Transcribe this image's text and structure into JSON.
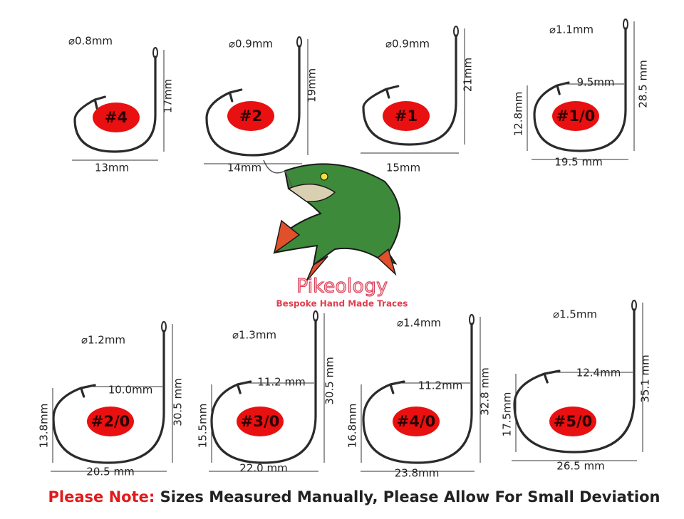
{
  "hooks": [
    {
      "size": "#4",
      "diameter": "⌀0.8mm",
      "length": "17mm",
      "width": "13mm"
    },
    {
      "size": "#2",
      "diameter": "⌀0.9mm",
      "length": "19mm",
      "width": "14mm"
    },
    {
      "size": "#1",
      "diameter": "⌀0.9mm",
      "length": "21mm",
      "width": "15mm"
    },
    {
      "size": "#1/0",
      "diameter": "⌀1.1mm",
      "gap": "9.5mm",
      "length": "28.5 mm",
      "point_height": "12.8mm",
      "width": "19.5 mm"
    },
    {
      "size": "#2/0",
      "diameter": "⌀1.2mm",
      "gap": "10.0mm",
      "length": "30.5 mm",
      "point_height": "13.8mm",
      "width": "20.5 mm"
    },
    {
      "size": "#3/0",
      "diameter": "⌀1.3mm",
      "gap": "11.2 mm",
      "length": "30.5 mm",
      "point_height": "15.5mm",
      "width": "22.0 mm"
    },
    {
      "size": "#4/0",
      "diameter": "⌀1.4mm",
      "gap": "11.2mm",
      "length": "32.8 mm",
      "point_height": "16.8mm",
      "width": "23.8mm"
    },
    {
      "size": "#5/0",
      "diameter": "⌀1.5mm",
      "gap": "12.4mm",
      "length": "35.1 mm",
      "point_height": "17.5mm",
      "width": "26.5 mm"
    }
  ],
  "logo": {
    "name": "Pikeology",
    "tagline": "Bespoke Hand Made Traces"
  },
  "note": {
    "label": "Please Note:",
    "text": "Sizes Measured Manually, Please Allow For Small Deviation"
  }
}
